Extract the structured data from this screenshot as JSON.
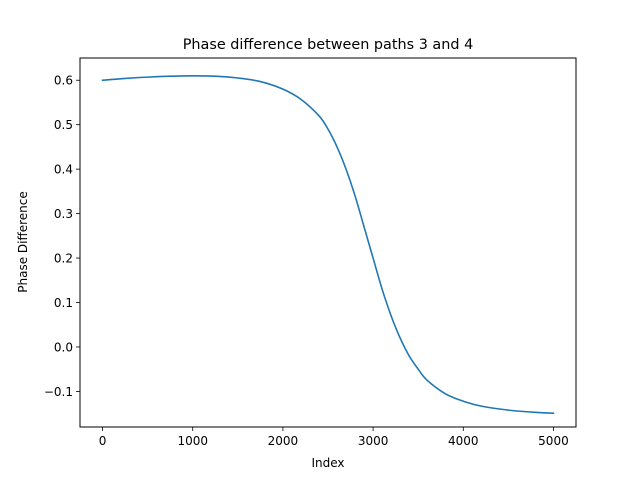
{
  "chart_data": {
    "type": "line",
    "title": "Phase difference between paths 3 and 4",
    "xlabel": "Index",
    "ylabel": "Phase Difference",
    "xlim": [
      -250,
      5250
    ],
    "ylim": [
      -0.18,
      0.65
    ],
    "xticks": [
      0,
      1000,
      2000,
      3000,
      4000,
      5000
    ],
    "xtick_labels": [
      "0",
      "1000",
      "2000",
      "3000",
      "4000",
      "5000"
    ],
    "yticks": [
      -0.1,
      0.0,
      0.1,
      0.2,
      0.3,
      0.4,
      0.5,
      0.6
    ],
    "ytick_labels": [
      "−0.1",
      "0.0",
      "0.1",
      "0.2",
      "0.3",
      "0.4",
      "0.5",
      "0.6"
    ],
    "grid": false,
    "series": [
      {
        "color": "#1f77b4",
        "x": [
          0,
          250,
          500,
          750,
          1000,
          1250,
          1500,
          1750,
          2000,
          2200,
          2400,
          2500,
          2600,
          2700,
          2800,
          2900,
          3000,
          3100,
          3200,
          3300,
          3400,
          3500,
          3600,
          3800,
          4000,
          4200,
          4500,
          4800,
          5000
        ],
        "y": [
          0.6,
          0.604,
          0.607,
          0.609,
          0.61,
          0.609,
          0.605,
          0.597,
          0.58,
          0.557,
          0.52,
          0.49,
          0.45,
          0.4,
          0.34,
          0.27,
          0.2,
          0.13,
          0.07,
          0.02,
          -0.02,
          -0.05,
          -0.075,
          -0.105,
          -0.122,
          -0.133,
          -0.142,
          -0.147,
          -0.149
        ]
      }
    ]
  }
}
